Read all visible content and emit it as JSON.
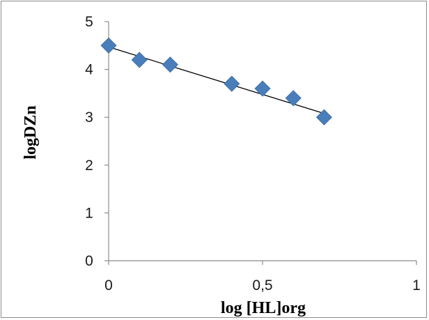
{
  "chart_data": {
    "type": "scatter",
    "title": "",
    "xlabel": "log [HL]org",
    "ylabel": "logDZn",
    "xlim": [
      0,
      1
    ],
    "ylim": [
      0,
      5
    ],
    "x_ticks": [
      0,
      0.5,
      1
    ],
    "x_tick_labels": [
      "0",
      "0,5",
      "1"
    ],
    "y_ticks": [
      0,
      1,
      2,
      3,
      4,
      5
    ],
    "y_tick_labels": [
      "0",
      "1",
      "2",
      "3",
      "4",
      "5"
    ],
    "grid": false,
    "legend": "none",
    "series": [
      {
        "x": [
          0,
          0.1,
          0.2,
          0.4,
          0.5,
          0.6,
          0.7
        ],
        "y": [
          4.5,
          4.2,
          4.1,
          3.7,
          3.6,
          3.4,
          3.0
        ],
        "marker": "diamond",
        "color": "#4a7ebb"
      }
    ],
    "trendline": {
      "type": "linear",
      "x_range": [
        0,
        0.7
      ],
      "y_values": [
        4.47,
        3.08
      ],
      "color": "#000000"
    }
  }
}
